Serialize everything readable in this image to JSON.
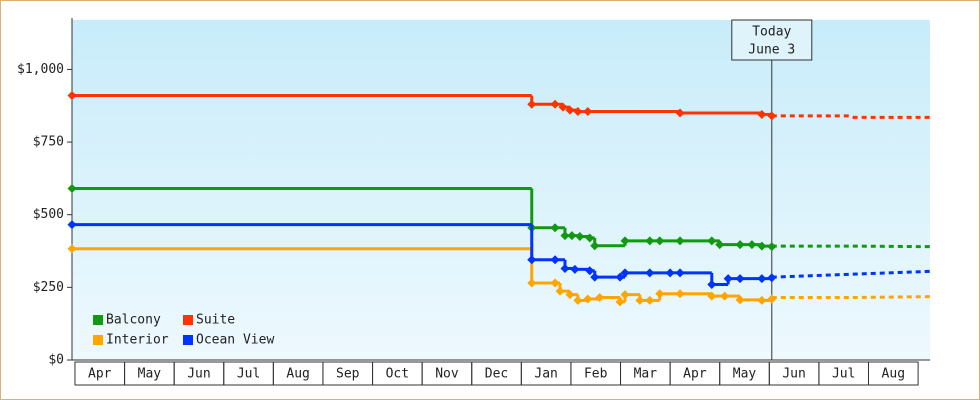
{
  "chart_data": {
    "type": "step-line",
    "ylim": [
      0,
      1170
    ],
    "yticks": [
      {
        "value": 0,
        "label": "$0"
      },
      {
        "value": 250,
        "label": "$250"
      },
      {
        "value": 500,
        "label": "$500"
      },
      {
        "value": 750,
        "label": "$750"
      },
      {
        "value": 1000,
        "label": "$1,000"
      }
    ],
    "xlim": [
      -0.06,
      17.24
    ],
    "xticks": [
      {
        "value": 0.5,
        "label": "Apr"
      },
      {
        "value": 1.5,
        "label": "May"
      },
      {
        "value": 2.5,
        "label": "Jun"
      },
      {
        "value": 3.5,
        "label": "Jul"
      },
      {
        "value": 4.5,
        "label": "Aug"
      },
      {
        "value": 5.5,
        "label": "Sep"
      },
      {
        "value": 6.5,
        "label": "Oct"
      },
      {
        "value": 7.5,
        "label": "Nov"
      },
      {
        "value": 8.5,
        "label": "Dec"
      },
      {
        "value": 9.5,
        "label": "Jan"
      },
      {
        "value": 10.5,
        "label": "Feb"
      },
      {
        "value": 11.5,
        "label": "Mar"
      },
      {
        "value": 12.5,
        "label": "Apr"
      },
      {
        "value": 13.5,
        "label": "May"
      },
      {
        "value": 14.5,
        "label": "Jun"
      },
      {
        "value": 15.5,
        "label": "Jul"
      },
      {
        "value": 16.5,
        "label": "Aug"
      }
    ],
    "annotation": {
      "lines": [
        "Today",
        "June 3"
      ],
      "x": 14.05
    },
    "legend": "bottom-left",
    "series": [
      {
        "name": "Balcony",
        "color": "#119911",
        "x": [
          -0.06,
          9.21,
          9.68,
          9.88,
          10.02,
          10.18,
          10.38,
          10.48,
          11.09,
          11.59,
          11.79,
          12.2,
          12.84,
          13.0,
          13.41,
          13.65,
          13.85,
          14.05
        ],
        "values": [
          590,
          455,
          455,
          428,
          428,
          425,
          420,
          393,
          410,
          410,
          410,
          410,
          410,
          397,
          397,
          397,
          392,
          390
        ],
        "forecast_x": [
          14.05,
          15.63,
          17.24
        ],
        "forecast_values": [
          392,
          392,
          390
        ]
      },
      {
        "name": "Suite",
        "color": "#ff3300",
        "x": [
          -0.06,
          9.21,
          9.68,
          9.84,
          9.98,
          10.14,
          10.34,
          12.2,
          13.85,
          14.05
        ],
        "values": [
          910,
          880,
          880,
          870,
          860,
          855,
          855,
          850,
          845,
          840
        ],
        "forecast_x": [
          14.05,
          15.58,
          15.7,
          17.24
        ],
        "forecast_values": [
          840,
          840,
          835,
          835
        ]
      },
      {
        "name": "Interior",
        "color": "#ffa500",
        "x": [
          -0.06,
          9.21,
          9.68,
          9.78,
          9.98,
          10.14,
          10.34,
          10.58,
          10.99,
          11.09,
          11.39,
          11.59,
          11.79,
          12.2,
          12.84,
          13.1,
          13.41,
          13.85,
          14.05
        ],
        "values": [
          383,
          265,
          265,
          237,
          225,
          205,
          210,
          215,
          200,
          225,
          205,
          205,
          228,
          228,
          220,
          220,
          207,
          205,
          210
        ],
        "forecast_x": [
          14.05,
          15.63,
          17.24
        ],
        "forecast_values": [
          215,
          215,
          218
        ]
      },
      {
        "name": "Ocean View",
        "color": "#0033ff",
        "x": [
          -0.06,
          9.21,
          9.68,
          9.88,
          10.08,
          10.38,
          10.48,
          10.99,
          11.09,
          11.59,
          12.0,
          12.2,
          12.84,
          13.17,
          13.41,
          13.85,
          14.05
        ],
        "values": [
          466,
          345,
          345,
          315,
          312,
          307,
          285,
          285,
          300,
          300,
          300,
          300,
          260,
          280,
          280,
          280,
          283
        ],
        "forecast_x": [
          14.05,
          15.63,
          17.24
        ],
        "forecast_values": [
          285,
          295,
          305
        ]
      }
    ]
  }
}
